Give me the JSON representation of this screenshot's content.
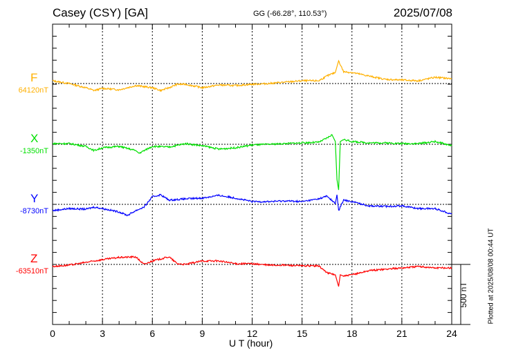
{
  "header": {
    "station": "Casey (CSY)  [GA]",
    "coords": "GG (-66.28°, 110.53°)",
    "date": "2025/07/08"
  },
  "footer_note": "Plotted at 2025/08/08 00:44 UT",
  "chart_data": {
    "type": "line",
    "title": "Casey (CSY)  [GA]",
    "xlabel": "U T (hour)",
    "xlim": [
      0,
      24
    ],
    "xticks": [
      "0",
      "3",
      "6",
      "9",
      "12",
      "15",
      "18",
      "21",
      "24"
    ],
    "scale_bar_label": "500 nT",
    "scale_bar_nT": 500,
    "grid": true,
    "series": [
      {
        "name": "F",
        "baseline_label": "64120nT",
        "color": "#ffb000",
        "x": [
          0,
          1,
          2,
          2.5,
          3,
          4,
          5,
          6,
          6.5,
          7,
          7.5,
          8,
          9,
          10,
          11,
          12,
          13,
          14,
          15,
          16,
          16.5,
          17,
          17.2,
          17.5,
          18,
          19,
          20,
          21,
          22,
          23,
          24
        ],
        "y": [
          23,
          0,
          -35,
          -58,
          -40,
          -52,
          -17,
          -35,
          -58,
          -35,
          -6,
          -6,
          -35,
          -12,
          -17,
          -6,
          0,
          12,
          23,
          23,
          63,
          92,
          190,
          98,
          92,
          63,
          35,
          29,
          23,
          52,
          40
        ]
      },
      {
        "name": "X",
        "baseline_label": "-1350nT",
        "color": "#00e000",
        "x": [
          0,
          1,
          2,
          2.5,
          3,
          4,
          5,
          5.2,
          6,
          7,
          8,
          9,
          10,
          11,
          12,
          13,
          14,
          15,
          16,
          16.5,
          16.8,
          17,
          17.1,
          17.2,
          17.3,
          17.5,
          18,
          19,
          20,
          21,
          22,
          23,
          24
        ],
        "y": [
          6,
          6,
          -17,
          -52,
          -29,
          -17,
          -52,
          -75,
          -17,
          -23,
          6,
          -12,
          -40,
          -29,
          -6,
          0,
          6,
          12,
          17,
          52,
          80,
          23,
          -293,
          -380,
          23,
          40,
          23,
          12,
          12,
          6,
          6,
          23,
          -12
        ]
      },
      {
        "name": "Y",
        "baseline_label": "-8730nT",
        "color": "#0000ff",
        "x": [
          0,
          1,
          2,
          2.5,
          3,
          4,
          4.5,
          5,
          5.5,
          6,
          6.5,
          7,
          8,
          9,
          10,
          11,
          12,
          13,
          14,
          15,
          16,
          16.5,
          17,
          17.1,
          17.2,
          17.5,
          18,
          19,
          20,
          21,
          22,
          23,
          24
        ],
        "y": [
          -52,
          -35,
          -40,
          -23,
          -35,
          -63,
          -92,
          -52,
          -23,
          63,
          80,
          35,
          46,
          52,
          75,
          52,
          23,
          23,
          29,
          23,
          46,
          69,
          6,
          80,
          -52,
          35,
          23,
          -12,
          -17,
          -12,
          -35,
          -35,
          -80
        ]
      },
      {
        "name": "Z",
        "baseline_label": "-63510nT",
        "color": "#ff0000",
        "x": [
          0,
          1,
          2,
          3,
          4,
          5,
          5.5,
          6,
          7,
          7.5,
          8,
          9,
          10,
          11,
          12,
          13,
          14,
          15,
          16,
          16.5,
          17,
          17.2,
          17.3,
          17.5,
          18,
          19,
          20,
          21,
          22,
          23,
          24
        ],
        "y": [
          -17,
          -6,
          17,
          40,
          58,
          63,
          0,
          29,
          63,
          6,
          0,
          29,
          29,
          6,
          6,
          -6,
          -6,
          -12,
          -12,
          -69,
          -86,
          -184,
          -86,
          -98,
          -86,
          -52,
          -40,
          -29,
          -17,
          -29,
          -29
        ]
      }
    ]
  }
}
